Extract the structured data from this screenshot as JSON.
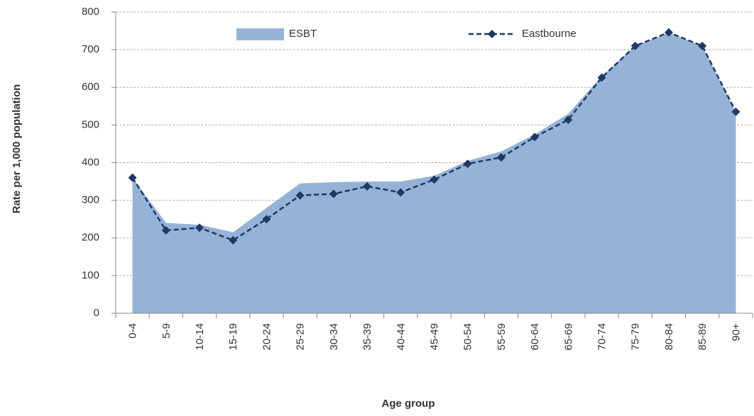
{
  "chart_data": {
    "type": "area_line",
    "x_label": "Age group",
    "y_label": "Rate per 1,000 population",
    "categories": [
      "0-4",
      "5-9",
      "10-14",
      "15-19",
      "20-24",
      "25-29",
      "30-34",
      "35-39",
      "40-44",
      "45-49",
      "50-54",
      "55-59",
      "60-64",
      "65-69",
      "70-74",
      "75-79",
      "80-84",
      "85-89",
      "90+"
    ],
    "series": [
      {
        "name": "ESBT",
        "kind": "area",
        "color": "#95b3d7",
        "values": [
          360,
          240,
          235,
          215,
          280,
          345,
          348,
          350,
          350,
          365,
          405,
          430,
          475,
          530,
          630,
          710,
          745,
          710,
          535
        ]
      },
      {
        "name": "Eastbourne",
        "kind": "line",
        "color": "#1f3864",
        "values": [
          360,
          220,
          227,
          194,
          250,
          313,
          317,
          337,
          321,
          355,
          397,
          414,
          468,
          514,
          626,
          710,
          746,
          710,
          535
        ]
      }
    ],
    "ylim": [
      0,
      800
    ],
    "yticks": [
      0,
      100,
      200,
      300,
      400,
      500,
      600,
      700,
      800
    ],
    "grid": true,
    "legend": "top"
  }
}
